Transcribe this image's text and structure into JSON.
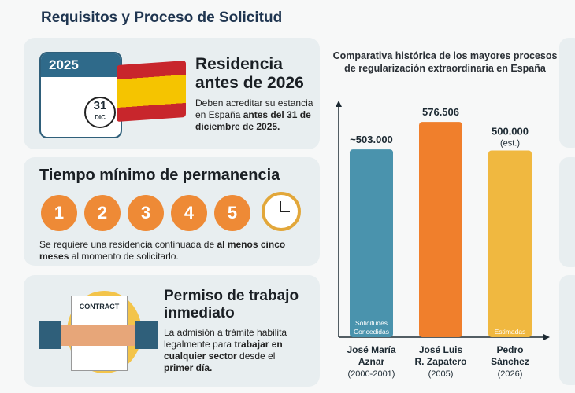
{
  "header": {
    "title": "Requisitos y Proceso de Solicitud"
  },
  "cards": [
    {
      "calendar_year": "2025",
      "calendar_day": "31",
      "calendar_month": "DIC",
      "title_line1": "Residencia",
      "title_line2": "antes de 2026",
      "text_pre": "Deben acreditar su estancia en España ",
      "text_bold": "antes del 31 de diciembre de 2025."
    },
    {
      "title": "Tiempo mínimo de permanencia",
      "steps": [
        "1",
        "2",
        "3",
        "4",
        "5"
      ],
      "text_pre": "Se requiere una residencia continuada de ",
      "text_bold": "al menos cinco meses",
      "text_post": " al momento de solicitarlo."
    },
    {
      "contract_label": "CONTRACT",
      "title_line1": "Permiso de trabajo",
      "title_line2": "inmediato",
      "text_pre": "La admisión a trámite habilita legalmente para ",
      "text_bold": "trabajar en cualquier sector",
      "text_mid": " desde el ",
      "text_bold2": "primer día."
    }
  ],
  "chart_data": {
    "type": "bar",
    "title": "Comparativa histórica de los mayores procesos de regularización extraordinaria en España",
    "categories": [
      {
        "name": "José María Aznar",
        "period": "(2000-2001)"
      },
      {
        "name": "José Luis R. Zapatero",
        "period": "(2005)"
      },
      {
        "name": "Pedro Sánchez",
        "period": "(2026)"
      }
    ],
    "values": [
      503000,
      576506,
      500000
    ],
    "value_labels": [
      "~503.000",
      "576.506",
      "500.000"
    ],
    "value_notes": [
      "",
      "",
      "(est.)"
    ],
    "inner_labels": [
      "Solicitudes Concedidas",
      "",
      "Estimadas"
    ],
    "colors": [
      "#4a93ad",
      "#f07f2c",
      "#f0b840"
    ],
    "ylim": [
      0,
      600000
    ],
    "xlabel": "",
    "ylabel": ""
  }
}
